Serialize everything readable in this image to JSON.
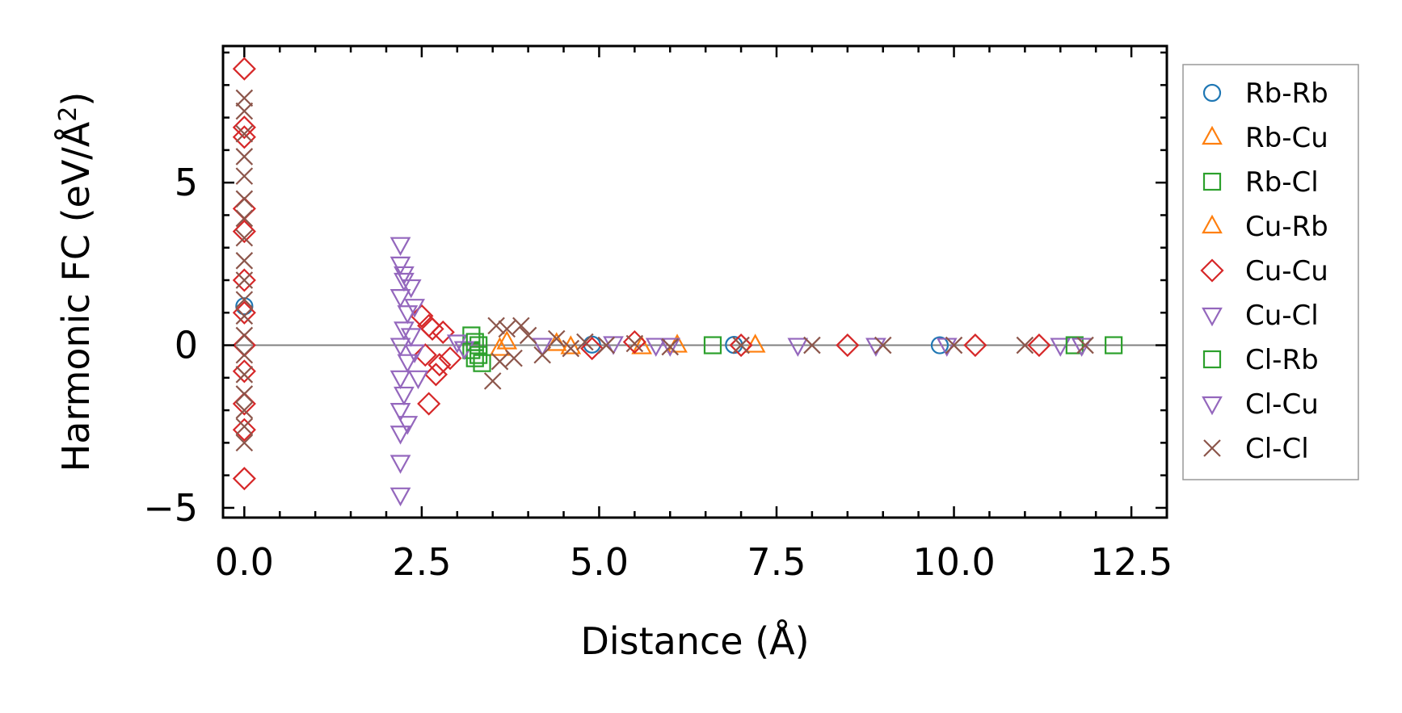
{
  "chart_data": {
    "type": "scatter",
    "xlabel": "Distance (Å)",
    "ylabel_main": "Harmonic FC (eV/Å",
    "ylabel_sup": "2",
    "ylabel_close": ")",
    "xlim": [
      -0.3,
      13.0
    ],
    "ylim": [
      -5.3,
      9.2
    ],
    "xticks": [
      0.0,
      2.5,
      5.0,
      7.5,
      10.0,
      12.5
    ],
    "xtick_labels": [
      "0.0",
      "2.5",
      "5.0",
      "7.5",
      "10.0",
      "12.5"
    ],
    "yticks": [
      -5,
      0,
      5
    ],
    "ytick_labels": [
      "−5",
      "0",
      "5"
    ],
    "zero_line": 0,
    "legend_position": "outside-right",
    "series": [
      {
        "name": "Rb-Rb",
        "marker": "circle",
        "color": "#1f77b4",
        "points": [
          [
            0.0,
            1.2
          ],
          [
            4.9,
            0.02
          ],
          [
            6.9,
            0.01
          ],
          [
            9.8,
            0.0
          ]
        ]
      },
      {
        "name": "Rb-Cu",
        "marker": "triangle-up",
        "color": "#ff7f0e",
        "points": [
          [
            3.6,
            -0.1
          ],
          [
            4.4,
            0.05
          ],
          [
            5.6,
            -0.05
          ],
          [
            7.2,
            0.0
          ]
        ]
      },
      {
        "name": "Rb-Cl",
        "marker": "square",
        "color": "#2ca02c",
        "points": [
          [
            3.2,
            0.3
          ],
          [
            3.25,
            -0.4
          ],
          [
            3.3,
            0.0
          ],
          [
            3.35,
            -0.55
          ],
          [
            3.2,
            -0.15
          ],
          [
            12.25,
            0.0
          ]
        ]
      },
      {
        "name": "Cu-Rb",
        "marker": "triangle-up",
        "color": "#ff7f0e",
        "points": [
          [
            3.7,
            0.1
          ],
          [
            4.6,
            -0.05
          ],
          [
            6.1,
            0.0
          ]
        ]
      },
      {
        "name": "Cu-Cu",
        "marker": "diamond",
        "color": "#d62728",
        "points": [
          [
            0.0,
            8.5
          ],
          [
            0.0,
            6.7
          ],
          [
            0.0,
            6.4
          ],
          [
            0.0,
            4.2
          ],
          [
            0.0,
            3.5
          ],
          [
            0.0,
            2.0
          ],
          [
            0.0,
            1.0
          ],
          [
            0.0,
            0.0
          ],
          [
            0.0,
            -0.8
          ],
          [
            0.0,
            -1.8
          ],
          [
            0.0,
            -2.6
          ],
          [
            0.0,
            -4.1
          ],
          [
            2.5,
            0.9
          ],
          [
            2.55,
            -0.3
          ],
          [
            2.6,
            -1.8
          ],
          [
            2.65,
            0.5
          ],
          [
            2.7,
            -0.9
          ],
          [
            2.8,
            0.4
          ],
          [
            2.9,
            -0.4
          ],
          [
            2.6,
            0.6
          ],
          [
            2.75,
            -0.6
          ],
          [
            4.9,
            -0.1
          ],
          [
            5.5,
            0.1
          ],
          [
            7.0,
            0.0
          ],
          [
            8.5,
            0.0
          ],
          [
            10.3,
            0.0
          ],
          [
            11.2,
            0.0
          ]
        ]
      },
      {
        "name": "Cu-Cl",
        "marker": "triangle-down",
        "color": "#9467bd",
        "points": [
          [
            2.2,
            3.1
          ],
          [
            2.2,
            2.5
          ],
          [
            2.25,
            2.0
          ],
          [
            2.2,
            1.5
          ],
          [
            2.3,
            1.0
          ],
          [
            2.25,
            0.5
          ],
          [
            2.2,
            0.0
          ],
          [
            2.3,
            -0.5
          ],
          [
            2.2,
            -1.0
          ],
          [
            2.25,
            -1.5
          ],
          [
            2.2,
            -2.0
          ],
          [
            2.2,
            -2.7
          ],
          [
            2.2,
            -3.6
          ],
          [
            2.2,
            -4.6
          ],
          [
            2.35,
            1.8
          ],
          [
            2.4,
            1.2
          ],
          [
            2.45,
            -1.0
          ],
          [
            2.4,
            -0.2
          ],
          [
            3.0,
            0.1
          ],
          [
            3.1,
            -0.1
          ],
          [
            5.2,
            0.05
          ],
          [
            6.0,
            0.0
          ],
          [
            7.8,
            0.0
          ],
          [
            9.9,
            0.0
          ],
          [
            11.5,
            0.0
          ]
        ]
      },
      {
        "name": "Cl-Rb",
        "marker": "square",
        "color": "#2ca02c",
        "points": [
          [
            3.25,
            0.1
          ],
          [
            3.3,
            -0.3
          ],
          [
            6.6,
            0.0
          ],
          [
            11.7,
            0.0
          ]
        ]
      },
      {
        "name": "Cl-Cu",
        "marker": "triangle-down",
        "color": "#9467bd",
        "points": [
          [
            2.25,
            2.2
          ],
          [
            2.3,
            -2.4
          ],
          [
            2.35,
            0.3
          ],
          [
            4.2,
            0.0
          ],
          [
            5.8,
            0.0
          ],
          [
            8.9,
            0.0
          ],
          [
            11.8,
            0.0
          ]
        ]
      },
      {
        "name": "Cl-Cl",
        "marker": "x",
        "color": "#8c564b",
        "points": [
          [
            0.0,
            7.6
          ],
          [
            0.0,
            7.2
          ],
          [
            0.0,
            6.5
          ],
          [
            0.0,
            5.8
          ],
          [
            0.0,
            5.2
          ],
          [
            0.0,
            4.5
          ],
          [
            0.0,
            3.9
          ],
          [
            0.0,
            3.3
          ],
          [
            0.0,
            2.6
          ],
          [
            0.0,
            2.0
          ],
          [
            0.0,
            1.4
          ],
          [
            0.0,
            0.9
          ],
          [
            0.0,
            0.3
          ],
          [
            0.0,
            -0.3
          ],
          [
            0.0,
            -0.9
          ],
          [
            0.0,
            -1.5
          ],
          [
            0.0,
            -2.0
          ],
          [
            0.0,
            -2.5
          ],
          [
            0.0,
            -3.0
          ],
          [
            3.5,
            -1.1
          ],
          [
            3.55,
            0.6
          ],
          [
            3.6,
            -0.5
          ],
          [
            3.7,
            0.5
          ],
          [
            3.8,
            -0.4
          ],
          [
            3.9,
            0.6
          ],
          [
            4.0,
            0.3
          ],
          [
            4.2,
            -0.3
          ],
          [
            4.4,
            0.2
          ],
          [
            4.6,
            -0.1
          ],
          [
            4.8,
            0.1
          ],
          [
            5.1,
            0.0
          ],
          [
            5.5,
            0.05
          ],
          [
            6.0,
            -0.05
          ],
          [
            7.0,
            0.0
          ],
          [
            8.0,
            0.0
          ],
          [
            9.0,
            0.0
          ],
          [
            10.0,
            0.0
          ],
          [
            11.0,
            0.0
          ],
          [
            11.85,
            0.0
          ]
        ]
      }
    ]
  }
}
